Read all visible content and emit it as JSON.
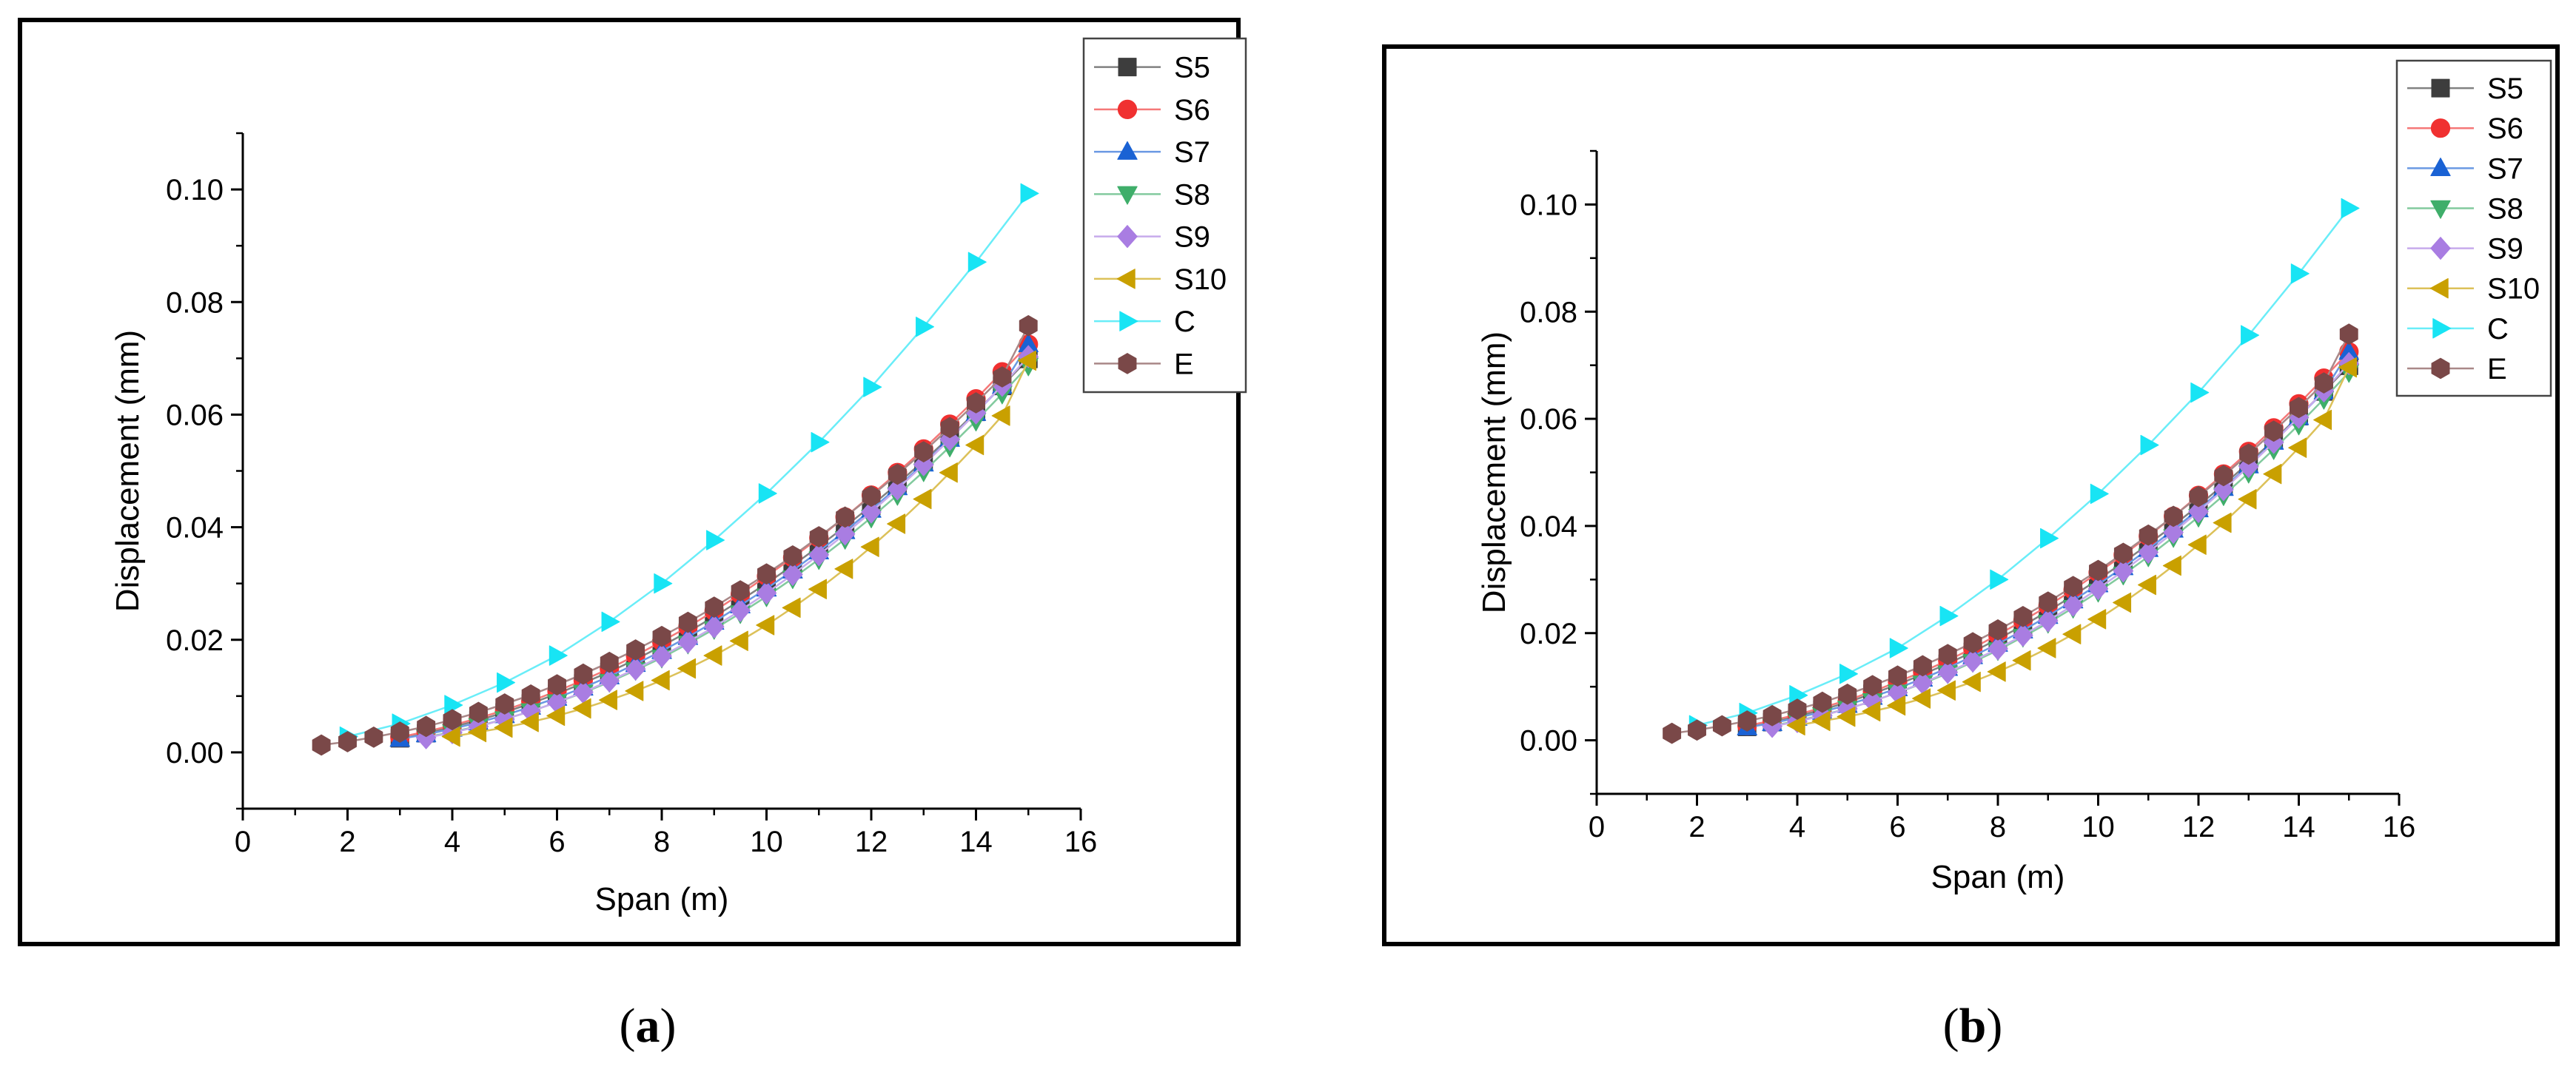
{
  "panels": [
    {
      "label": "a",
      "caption_open": "(",
      "caption_close": ")"
    },
    {
      "label": "b",
      "caption_open": "(",
      "caption_close": ")"
    }
  ],
  "colors": {
    "S5": "#3d3d3d",
    "S6": "#f03030",
    "S7": "#1a62d4",
    "S8": "#3fae6a",
    "S9": "#a97de2",
    "S10": "#c9a000",
    "C": "#18e4f4",
    "E": "#7a4848"
  },
  "chart_data": [
    {
      "type": "line",
      "title": "",
      "xlabel": "Span (m)",
      "ylabel": "Displacement (mm)",
      "xlim": [
        0,
        16
      ],
      "ylim": [
        -0.01,
        0.11
      ],
      "xticks": [
        0,
        2,
        4,
        6,
        8,
        10,
        12,
        14,
        16
      ],
      "yticks": [
        0.0,
        0.02,
        0.04,
        0.06,
        0.08,
        0.1
      ],
      "ytick_labels": [
        "0.00",
        "0.02",
        "0.04",
        "0.06",
        "0.08",
        "0.10"
      ],
      "legend_position": "top-right outside",
      "series": [
        {
          "name": "S5",
          "marker": "square",
          "x": [
            3,
            3.5,
            4,
            4.5,
            5,
            5.5,
            6,
            6.5,
            7,
            7.5,
            8,
            8.5,
            9,
            9.5,
            10,
            10.5,
            11,
            11.5,
            12,
            12.5,
            13,
            13.5,
            14,
            14.5,
            15
          ],
          "y": [
            0.0025,
            0.0034,
            0.0045,
            0.0057,
            0.0071,
            0.0087,
            0.0104,
            0.0123,
            0.0143,
            0.0165,
            0.0189,
            0.0214,
            0.0241,
            0.027,
            0.03,
            0.0332,
            0.0366,
            0.0401,
            0.0438,
            0.0477,
            0.0518,
            0.056,
            0.0605,
            0.0651,
            0.0699
          ]
        },
        {
          "name": "S6",
          "marker": "circle",
          "x": [
            3,
            3.5,
            4,
            4.5,
            5,
            5.5,
            6,
            6.5,
            7,
            7.5,
            8,
            8.5,
            9,
            9.5,
            10,
            10.5,
            11,
            11.5,
            12,
            12.5,
            13,
            13.5,
            14,
            14.5,
            15
          ],
          "y": [
            0.0027,
            0.0037,
            0.0048,
            0.0061,
            0.0075,
            0.0091,
            0.0109,
            0.0128,
            0.0149,
            0.0172,
            0.0197,
            0.0223,
            0.0251,
            0.0281,
            0.0313,
            0.0346,
            0.0381,
            0.0418,
            0.0457,
            0.0497,
            0.0539,
            0.0583,
            0.0628,
            0.0676,
            0.0725
          ]
        },
        {
          "name": "S7",
          "marker": "triangle-up",
          "x": [
            3,
            3.5,
            4,
            4.5,
            5,
            5.5,
            6,
            6.5,
            7,
            7.5,
            8,
            8.5,
            9,
            9.5,
            10,
            10.5,
            11,
            11.5,
            12,
            12.5,
            13,
            13.5,
            14,
            14.5,
            15
          ],
          "y": [
            0.0024,
            0.0032,
            0.0042,
            0.0053,
            0.0066,
            0.0081,
            0.0097,
            0.0115,
            0.0135,
            0.0157,
            0.018,
            0.0205,
            0.0232,
            0.0261,
            0.0291,
            0.0323,
            0.0357,
            0.0393,
            0.0431,
            0.0471,
            0.0513,
            0.0557,
            0.0603,
            0.0651,
            0.0725
          ]
        },
        {
          "name": "S8",
          "marker": "triangle-down",
          "x": [
            3.5,
            4,
            4.5,
            5,
            5.5,
            6,
            6.5,
            7,
            7.5,
            8,
            8.5,
            9,
            9.5,
            10,
            10.5,
            11,
            11.5,
            12,
            12.5,
            13,
            13.5,
            14,
            14.5,
            15
          ],
          "y": [
            0.0027,
            0.0036,
            0.0047,
            0.0059,
            0.0073,
            0.0089,
            0.0106,
            0.0125,
            0.0146,
            0.0168,
            0.0193,
            0.0219,
            0.0247,
            0.0277,
            0.0309,
            0.0343,
            0.0379,
            0.0417,
            0.0457,
            0.0499,
            0.0543,
            0.0589,
            0.0637,
            0.0687
          ]
        },
        {
          "name": "S9",
          "marker": "diamond",
          "x": [
            3.5,
            4,
            4.5,
            5,
            5.5,
            6,
            6.5,
            7,
            7.5,
            8,
            8.5,
            9,
            9.5,
            10,
            10.5,
            11,
            11.5,
            12,
            12.5,
            13,
            13.5,
            14,
            14.5,
            15
          ],
          "y": [
            0.0026,
            0.0035,
            0.0046,
            0.0059,
            0.0073,
            0.0089,
            0.0107,
            0.0127,
            0.0148,
            0.0171,
            0.0196,
            0.0223,
            0.0252,
            0.0283,
            0.0316,
            0.0351,
            0.0388,
            0.0427,
            0.0468,
            0.0511,
            0.0556,
            0.0603,
            0.0652,
            0.0703
          ]
        },
        {
          "name": "S10",
          "marker": "triangle-left",
          "x": [
            4,
            4.5,
            5,
            5.5,
            6,
            6.5,
            7,
            7.5,
            8,
            8.5,
            9,
            9.5,
            10,
            10.5,
            11,
            11.5,
            12,
            12.5,
            13,
            13.5,
            14,
            14.5,
            15
          ],
          "y": [
            0.0028,
            0.0036,
            0.0044,
            0.0054,
            0.0065,
            0.0078,
            0.0093,
            0.0109,
            0.0128,
            0.0149,
            0.0172,
            0.0198,
            0.0226,
            0.0257,
            0.029,
            0.0326,
            0.0365,
            0.0406,
            0.045,
            0.0497,
            0.0546,
            0.0598,
            0.0696
          ]
        },
        {
          "name": "C",
          "marker": "triangle-right",
          "x": [
            2,
            3,
            4,
            5,
            6,
            7,
            8,
            9,
            10,
            11,
            12,
            13,
            14,
            15
          ],
          "y": [
            0.0028,
            0.0051,
            0.0084,
            0.0124,
            0.0172,
            0.0232,
            0.03,
            0.0377,
            0.046,
            0.0551,
            0.0649,
            0.0756,
            0.0871,
            0.0993
          ]
        },
        {
          "name": "E",
          "marker": "hexagon",
          "x": [
            1.5,
            2,
            2.5,
            3,
            3.5,
            4,
            4.5,
            5,
            5.5,
            6,
            6.5,
            7,
            7.5,
            8,
            8.5,
            9,
            9.5,
            10,
            10.5,
            11,
            11.5,
            12,
            12.5,
            13,
            13.5,
            14,
            14.5,
            15
          ],
          "y": [
            0.0013,
            0.0019,
            0.0027,
            0.0036,
            0.0046,
            0.0058,
            0.0071,
            0.0086,
            0.0102,
            0.012,
            0.0139,
            0.016,
            0.0182,
            0.0206,
            0.0231,
            0.0258,
            0.0287,
            0.0317,
            0.0349,
            0.0383,
            0.0418,
            0.0455,
            0.0494,
            0.0534,
            0.0577,
            0.0621,
            0.0667,
            0.0758
          ]
        }
      ]
    },
    {
      "type": "line",
      "title": "",
      "xlabel": "Span (m)",
      "ylabel": "Displacement (mm)",
      "xlim": [
        0,
        16
      ],
      "ylim": [
        -0.01,
        0.11
      ],
      "xticks": [
        0,
        2,
        4,
        6,
        8,
        10,
        12,
        14,
        16
      ],
      "yticks": [
        0.0,
        0.02,
        0.04,
        0.06,
        0.08,
        0.1
      ],
      "ytick_labels": [
        "0.00",
        "0.02",
        "0.04",
        "0.06",
        "0.08",
        "0.10"
      ],
      "legend_position": "top-right outside",
      "series": [
        {
          "name": "S5",
          "marker": "square",
          "x": [
            3,
            3.5,
            4,
            4.5,
            5,
            5.5,
            6,
            6.5,
            7,
            7.5,
            8,
            8.5,
            9,
            9.5,
            10,
            10.5,
            11,
            11.5,
            12,
            12.5,
            13,
            13.5,
            14,
            14.5,
            15
          ],
          "y": [
            0.0025,
            0.0034,
            0.0045,
            0.0057,
            0.0071,
            0.0087,
            0.0104,
            0.0123,
            0.0143,
            0.0165,
            0.0189,
            0.0214,
            0.0241,
            0.027,
            0.03,
            0.0332,
            0.0366,
            0.0401,
            0.0438,
            0.0477,
            0.0518,
            0.056,
            0.0605,
            0.0651,
            0.0699
          ]
        },
        {
          "name": "S6",
          "marker": "circle",
          "x": [
            3,
            3.5,
            4,
            4.5,
            5,
            5.5,
            6,
            6.5,
            7,
            7.5,
            8,
            8.5,
            9,
            9.5,
            10,
            10.5,
            11,
            11.5,
            12,
            12.5,
            13,
            13.5,
            14,
            14.5,
            15
          ],
          "y": [
            0.0027,
            0.0037,
            0.0048,
            0.0061,
            0.0075,
            0.0091,
            0.0109,
            0.0128,
            0.0149,
            0.0172,
            0.0197,
            0.0223,
            0.0251,
            0.0281,
            0.0313,
            0.0346,
            0.0381,
            0.0418,
            0.0457,
            0.0497,
            0.0539,
            0.0583,
            0.0628,
            0.0676,
            0.0725
          ]
        },
        {
          "name": "S7",
          "marker": "triangle-up",
          "x": [
            3,
            3.5,
            4,
            4.5,
            5,
            5.5,
            6,
            6.5,
            7,
            7.5,
            8,
            8.5,
            9,
            9.5,
            10,
            10.5,
            11,
            11.5,
            12,
            12.5,
            13,
            13.5,
            14,
            14.5,
            15
          ],
          "y": [
            0.0024,
            0.0032,
            0.0042,
            0.0053,
            0.0066,
            0.0081,
            0.0097,
            0.0115,
            0.0135,
            0.0157,
            0.018,
            0.0205,
            0.0232,
            0.0261,
            0.0291,
            0.0323,
            0.0357,
            0.0393,
            0.0431,
            0.0471,
            0.0513,
            0.0557,
            0.0603,
            0.0651,
            0.0725
          ]
        },
        {
          "name": "S8",
          "marker": "triangle-down",
          "x": [
            3.5,
            4,
            4.5,
            5,
            5.5,
            6,
            6.5,
            7,
            7.5,
            8,
            8.5,
            9,
            9.5,
            10,
            10.5,
            11,
            11.5,
            12,
            12.5,
            13,
            13.5,
            14,
            14.5,
            15
          ],
          "y": [
            0.0027,
            0.0036,
            0.0047,
            0.0059,
            0.0073,
            0.0089,
            0.0106,
            0.0125,
            0.0146,
            0.0168,
            0.0193,
            0.0219,
            0.0247,
            0.0277,
            0.0309,
            0.0343,
            0.0379,
            0.0417,
            0.0457,
            0.0499,
            0.0543,
            0.0589,
            0.0637,
            0.0687
          ]
        },
        {
          "name": "S9",
          "marker": "diamond",
          "x": [
            3.5,
            4,
            4.5,
            5,
            5.5,
            6,
            6.5,
            7,
            7.5,
            8,
            8.5,
            9,
            9.5,
            10,
            10.5,
            11,
            11.5,
            12,
            12.5,
            13,
            13.5,
            14,
            14.5,
            15
          ],
          "y": [
            0.0026,
            0.0035,
            0.0046,
            0.0059,
            0.0073,
            0.0089,
            0.0107,
            0.0127,
            0.0148,
            0.0171,
            0.0196,
            0.0223,
            0.0252,
            0.0283,
            0.0316,
            0.0351,
            0.0388,
            0.0427,
            0.0468,
            0.0511,
            0.0556,
            0.0603,
            0.0652,
            0.0703
          ]
        },
        {
          "name": "S10",
          "marker": "triangle-left",
          "x": [
            4,
            4.5,
            5,
            5.5,
            6,
            6.5,
            7,
            7.5,
            8,
            8.5,
            9,
            9.5,
            10,
            10.5,
            11,
            11.5,
            12,
            12.5,
            13,
            13.5,
            14,
            14.5,
            15
          ],
          "y": [
            0.0028,
            0.0036,
            0.0044,
            0.0054,
            0.0065,
            0.0078,
            0.0093,
            0.0109,
            0.0128,
            0.0149,
            0.0172,
            0.0198,
            0.0226,
            0.0257,
            0.029,
            0.0326,
            0.0365,
            0.0406,
            0.045,
            0.0497,
            0.0546,
            0.0598,
            0.0696
          ]
        },
        {
          "name": "C",
          "marker": "triangle-right",
          "x": [
            2,
            3,
            4,
            5,
            6,
            7,
            8,
            9,
            10,
            11,
            12,
            13,
            14,
            15
          ],
          "y": [
            0.0028,
            0.0051,
            0.0084,
            0.0124,
            0.0172,
            0.0232,
            0.03,
            0.0377,
            0.046,
            0.0551,
            0.0649,
            0.0756,
            0.0871,
            0.0993
          ]
        },
        {
          "name": "E",
          "marker": "hexagon",
          "x": [
            1.5,
            2,
            2.5,
            3,
            3.5,
            4,
            4.5,
            5,
            5.5,
            6,
            6.5,
            7,
            7.5,
            8,
            8.5,
            9,
            9.5,
            10,
            10.5,
            11,
            11.5,
            12,
            12.5,
            13,
            13.5,
            14,
            14.5,
            15
          ],
          "y": [
            0.0013,
            0.0019,
            0.0027,
            0.0036,
            0.0046,
            0.0058,
            0.0071,
            0.0086,
            0.0102,
            0.012,
            0.0139,
            0.016,
            0.0182,
            0.0206,
            0.0231,
            0.0258,
            0.0287,
            0.0317,
            0.0349,
            0.0383,
            0.0418,
            0.0455,
            0.0494,
            0.0534,
            0.0577,
            0.0621,
            0.0667,
            0.0758
          ]
        }
      ]
    }
  ]
}
